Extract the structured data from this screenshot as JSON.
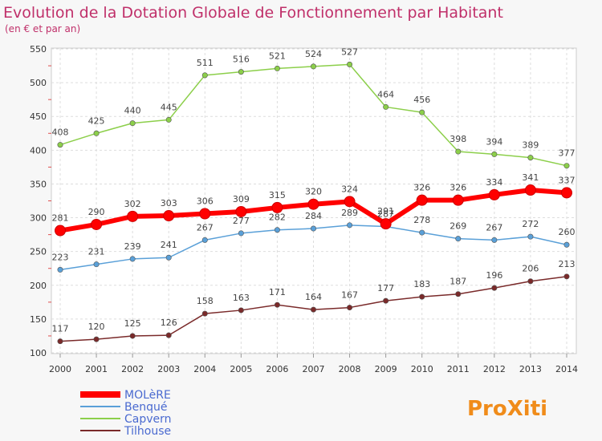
{
  "chart_data": {
    "type": "line",
    "title": "Evolution de la Dotation Globale de Fonctionnement par Habitant",
    "subtitle": "(en € et par an)",
    "xlabel": "",
    "ylabel": "",
    "ylim": [
      100,
      550
    ],
    "yticks": [
      100,
      150,
      200,
      250,
      300,
      350,
      400,
      450,
      500,
      550
    ],
    "categories": [
      "2000",
      "2001",
      "2002",
      "2003",
      "2004",
      "2005",
      "2006",
      "2007",
      "2008",
      "2009",
      "2010",
      "2011",
      "2012",
      "2013",
      "2014"
    ],
    "grid": true,
    "legend_position": "bottom-left",
    "series": [
      {
        "name": "Capvern",
        "color": "#8ccf4a",
        "values": [
          408,
          425,
          440,
          445,
          511,
          516,
          521,
          524,
          527,
          464,
          456,
          398,
          394,
          389,
          377
        ]
      },
      {
        "name": "Benqué",
        "color": "#5aa0d8",
        "values": [
          223,
          231,
          239,
          241,
          267,
          277,
          282,
          284,
          289,
          287,
          278,
          269,
          267,
          272,
          260
        ]
      },
      {
        "name": "Tilhouse",
        "color": "#7a2a2a",
        "values": [
          117,
          120,
          125,
          126,
          158,
          163,
          171,
          164,
          167,
          177,
          183,
          187,
          196,
          206,
          213
        ]
      },
      {
        "name": "MOLèRE",
        "color": "#ff0000",
        "values": [
          281,
          290,
          302,
          303,
          306,
          309,
          315,
          320,
          324,
          291,
          326,
          326,
          334,
          341,
          337
        ]
      }
    ],
    "legend": [
      {
        "name": "MOLèRE",
        "color": "#ff0000"
      },
      {
        "name": "Benqué",
        "color": "#5aa0d8"
      },
      {
        "name": "Capvern",
        "color": "#8ccf4a"
      },
      {
        "name": "Tilhouse",
        "color": "#7a2a2a"
      }
    ]
  },
  "logo": {
    "text": "ProXiti"
  }
}
